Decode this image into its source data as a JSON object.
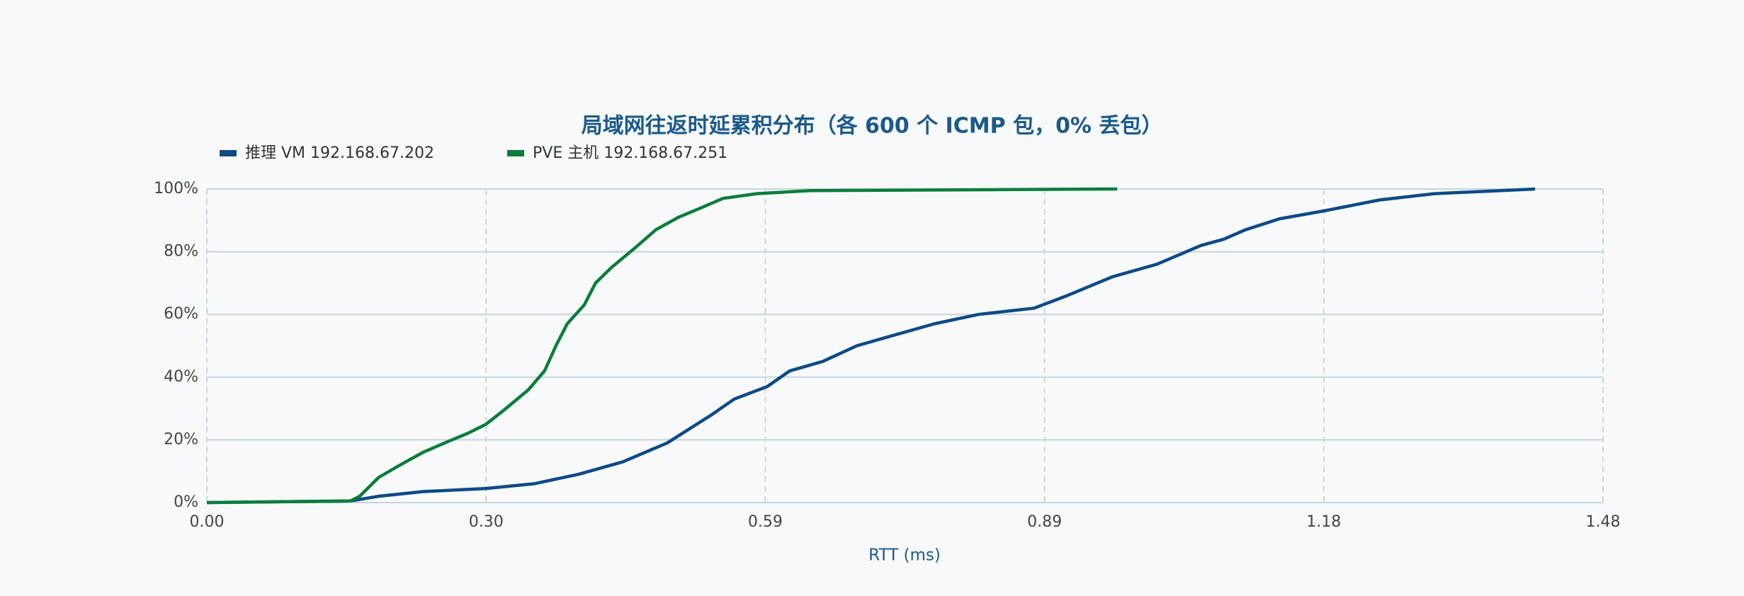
{
  "chart_data": {
    "type": "line",
    "title": "局域网往返时延累积分布（各 600 个 ICMP 包，0% 丢包）",
    "xlabel": "RTT (ms)",
    "xlim": [
      0,
      1.48
    ],
    "xticks": [
      {
        "value": 0,
        "label": "0.00"
      },
      {
        "value": 0.296,
        "label": "0.30"
      },
      {
        "value": 0.592,
        "label": "0.59"
      },
      {
        "value": 0.888,
        "label": "0.89"
      },
      {
        "value": 1.184,
        "label": "1.18"
      },
      {
        "value": 1.48,
        "label": "1.48"
      }
    ],
    "ylim": [
      0,
      100
    ],
    "yticks": [
      {
        "value": 0,
        "label": "0%"
      },
      {
        "value": 20,
        "label": "20%"
      },
      {
        "value": 40,
        "label": "40%"
      },
      {
        "value": 60,
        "label": "60%"
      },
      {
        "value": 80,
        "label": "80%"
      },
      {
        "value": 100,
        "label": "100%"
      }
    ],
    "grid": true,
    "legend": "top-left",
    "series": [
      {
        "name": "推理 VM 192.168.67.202",
        "color": "#0d4a86",
        "x": [
          0,
          0.152,
          0.182,
          0.229,
          0.296,
          0.347,
          0.394,
          0.441,
          0.488,
          0.535,
          0.559,
          0.594,
          0.618,
          0.653,
          0.689,
          0.724,
          0.771,
          0.818,
          0.877,
          0.912,
          0.96,
          1.007,
          1.054,
          1.078,
          1.101,
          1.137,
          1.184,
          1.243,
          1.301,
          1.408
        ],
        "values": [
          0,
          0.5,
          2,
          3.5,
          4.5,
          6,
          9,
          13,
          19,
          28,
          33,
          37,
          42,
          45,
          50,
          53,
          57,
          60,
          62,
          66,
          72,
          76,
          82,
          84,
          87,
          90.5,
          93,
          96.5,
          98.5,
          100
        ]
      },
      {
        "name": "PVE 主机 192.168.67.251",
        "color": "#0a7d3a",
        "x": [
          0,
          0.152,
          0.162,
          0.182,
          0.205,
          0.229,
          0.252,
          0.276,
          0.296,
          0.317,
          0.341,
          0.358,
          0.37,
          0.382,
          0.4,
          0.412,
          0.429,
          0.453,
          0.476,
          0.5,
          0.524,
          0.547,
          0.583,
          0.641,
          0.842,
          0.965
        ],
        "values": [
          0,
          0.5,
          2,
          8,
          12,
          16,
          19,
          22,
          25,
          30,
          36,
          42,
          50,
          57,
          63,
          70,
          75,
          81,
          87,
          91,
          94,
          97,
          98.5,
          99.5,
          99.8,
          100
        ]
      }
    ]
  }
}
